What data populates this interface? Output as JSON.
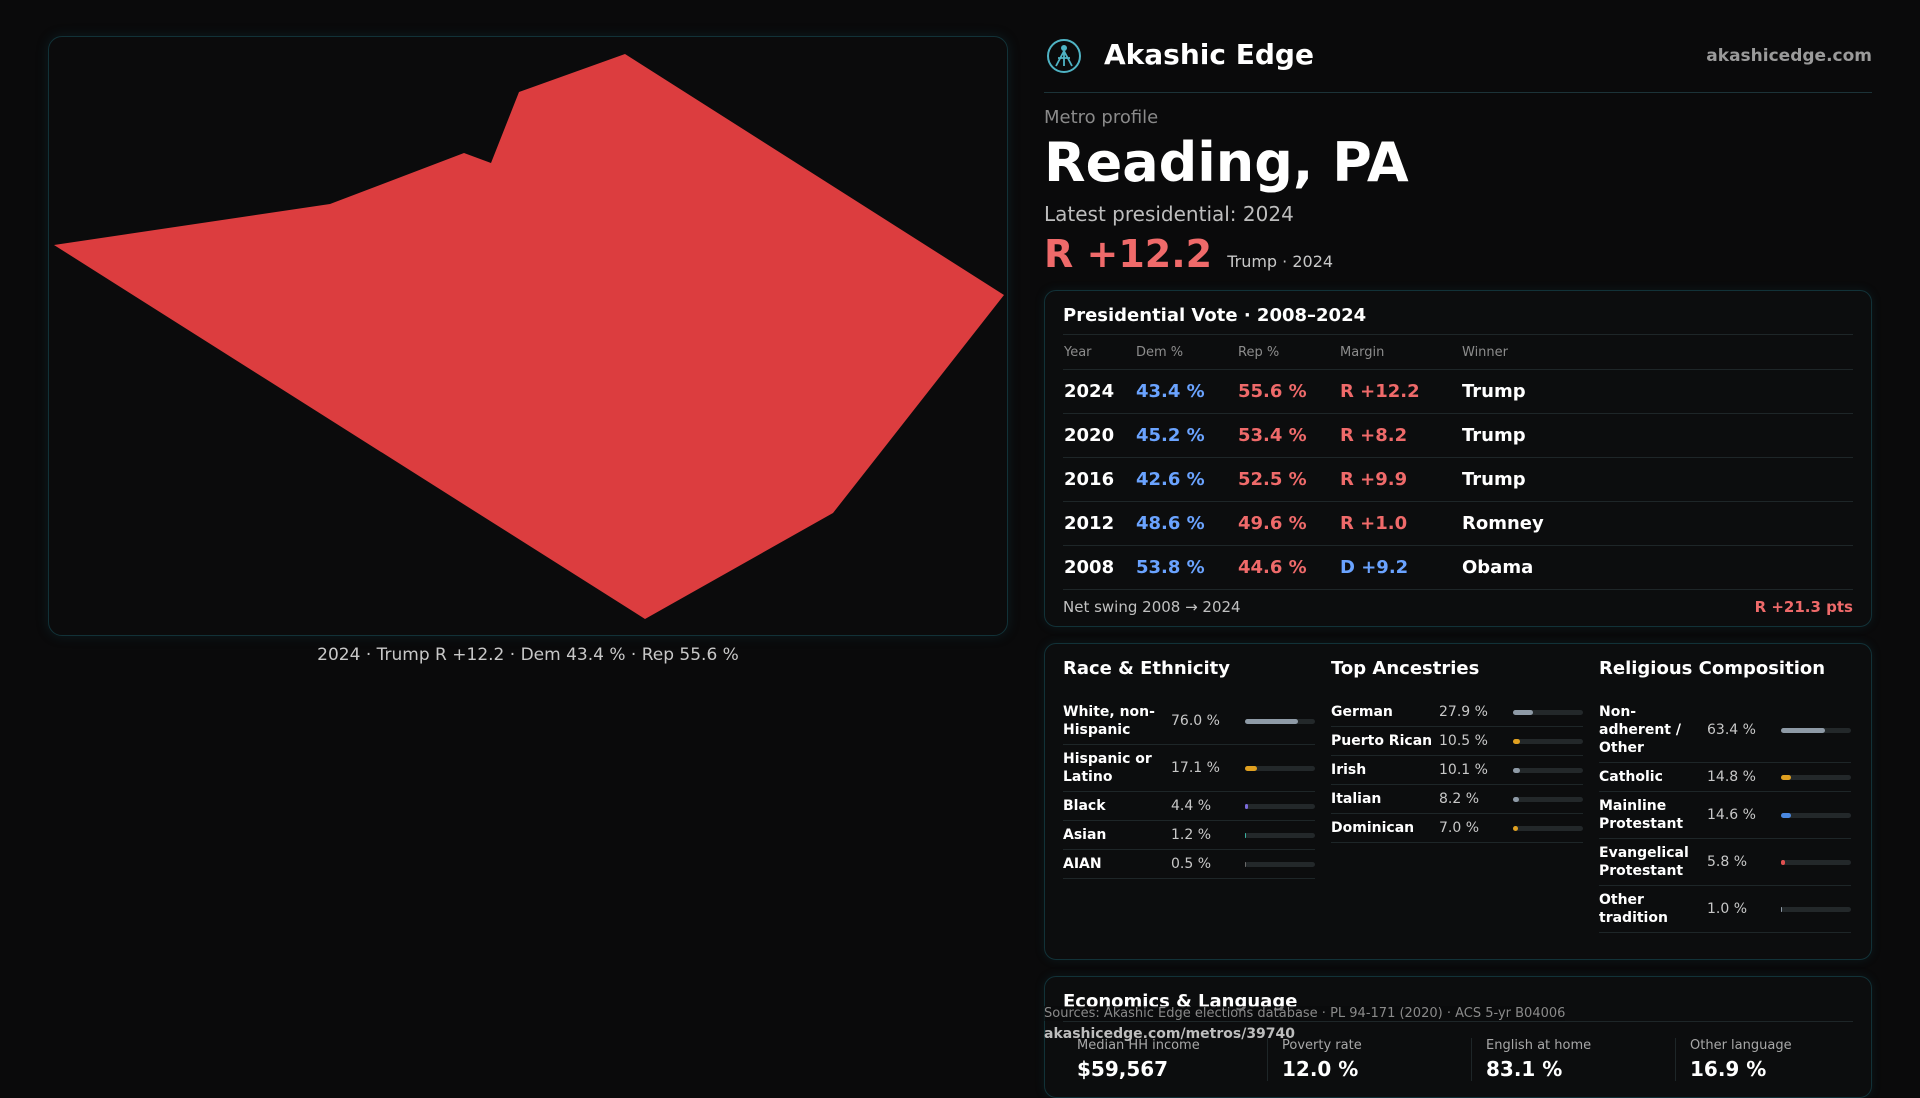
{
  "brand": {
    "name": "Akashic Edge",
    "domain": "akashicedge.com"
  },
  "profile": {
    "eyebrow": "Metro profile",
    "title": "Reading, PA",
    "latest_label": "Latest presidential: 2024",
    "margin": "R +12.2",
    "margin_sub": "Trump · 2024"
  },
  "map": {
    "fill_color": "#dc3d3f",
    "caption": "2024 · Trump R +12.2 · Dem 43.4 % · Rep 55.6 %"
  },
  "vote": {
    "title": "Presidential Vote · 2008–2024",
    "headers": [
      "Year",
      "Dem %",
      "Rep %",
      "Margin",
      "Winner"
    ],
    "rows": [
      {
        "year": "2024",
        "dem": "43.4 %",
        "rep": "55.6 %",
        "margin": "R +12.2",
        "party": "R",
        "winner": "Trump"
      },
      {
        "year": "2020",
        "dem": "45.2 %",
        "rep": "53.4 %",
        "margin": "R +8.2",
        "party": "R",
        "winner": "Trump"
      },
      {
        "year": "2016",
        "dem": "42.6 %",
        "rep": "52.5 %",
        "margin": "R +9.9",
        "party": "R",
        "winner": "Trump"
      },
      {
        "year": "2012",
        "dem": "48.6 %",
        "rep": "49.6 %",
        "margin": "R +1.0",
        "party": "R",
        "winner": "Romney"
      },
      {
        "year": "2008",
        "dem": "53.8 %",
        "rep": "44.6 %",
        "margin": "D +9.2",
        "party": "D",
        "winner": "Obama"
      }
    ],
    "swing_label": "Net swing 2008 → 2024",
    "swing_value": "R +21.3 pts"
  },
  "race": {
    "title": "Race & Ethnicity",
    "rows": [
      {
        "label": "White, non-Hispanic",
        "value": "76.0 %",
        "share": 0.76,
        "color": "#8e9aa6"
      },
      {
        "label": "Hispanic or Latino",
        "value": "17.1 %",
        "share": 0.171,
        "color": "#e0a020"
      },
      {
        "label": "Black",
        "value": "4.4 %",
        "share": 0.044,
        "color": "#7a6ad8"
      },
      {
        "label": "Asian",
        "value": "1.2 %",
        "share": 0.012,
        "color": "#3ab0a0"
      },
      {
        "label": "AIAN",
        "value": "0.5 %",
        "share": 0.005,
        "color": "#6a6a6a"
      }
    ]
  },
  "ancestry": {
    "title": "Top Ancestries",
    "rows": [
      {
        "label": "German",
        "value": "27.9 %",
        "share": 0.279,
        "color": "#8e9aa6"
      },
      {
        "label": "Puerto Rican",
        "value": "10.5 %",
        "share": 0.105,
        "color": "#e0a020"
      },
      {
        "label": "Irish",
        "value": "10.1 %",
        "share": 0.101,
        "color": "#8e9aa6"
      },
      {
        "label": "Italian",
        "value": "8.2 %",
        "share": 0.082,
        "color": "#8e9aa6"
      },
      {
        "label": "Dominican",
        "value": "7.0 %",
        "share": 0.07,
        "color": "#e0a020"
      }
    ]
  },
  "religion": {
    "title": "Religious Composition",
    "rows": [
      {
        "label": "Non-adherent / Other",
        "value": "63.4 %",
        "share": 0.634,
        "color": "#8e9aa6"
      },
      {
        "label": "Catholic",
        "value": "14.8 %",
        "share": 0.148,
        "color": "#e0a020"
      },
      {
        "label": "Mainline Protestant",
        "value": "14.6 %",
        "share": 0.146,
        "color": "#4a88e0"
      },
      {
        "label": "Evangelical Protestant",
        "value": "5.8 %",
        "share": 0.058,
        "color": "#e05050"
      },
      {
        "label": "Other tradition",
        "value": "1.0 %",
        "share": 0.01,
        "color": "#8e9aa6"
      }
    ]
  },
  "econ": {
    "title": "Economics & Language",
    "cells": [
      {
        "label": "Median HH income",
        "value": "$59,567"
      },
      {
        "label": "Poverty rate",
        "value": "12.0 %"
      },
      {
        "label": "English at home",
        "value": "83.1 %"
      },
      {
        "label": "Other language",
        "value": "16.9 %"
      }
    ]
  },
  "footer": {
    "sources": "Sources: Akashic Edge elections database · PL 94-171 (2020) · ACS 5-yr B04006",
    "url": "akashicedge.com/metros/39740"
  }
}
